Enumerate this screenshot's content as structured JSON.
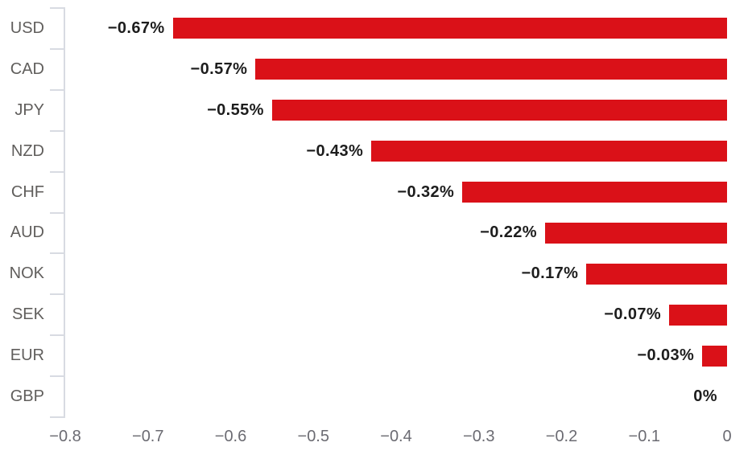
{
  "chart_data": {
    "type": "bar",
    "orientation": "horizontal",
    "title": "",
    "xlabel": "",
    "ylabel": "",
    "legend_position": "none",
    "grid": "off",
    "categories": [
      "USD",
      "CAD",
      "JPY",
      "NZD",
      "CHF",
      "AUD",
      "NOK",
      "SEK",
      "EUR",
      "GBP"
    ],
    "values": [
      -0.67,
      -0.57,
      -0.55,
      -0.43,
      -0.32,
      -0.22,
      -0.17,
      -0.07,
      -0.03,
      0
    ],
    "data_labels": [
      "−0.67%",
      "−0.57%",
      "−0.55%",
      "−0.43%",
      "−0.32%",
      "−0.22%",
      "−0.17%",
      "−0.07%",
      "−0.03%",
      "0%"
    ],
    "x_tick_labels": [
      "−0.8",
      "−0.7",
      "−0.6",
      "−0.5",
      "−0.4",
      "−0.3",
      "−0.2",
      "−0.1",
      "0"
    ],
    "x_tick_values": [
      -0.8,
      -0.7,
      -0.6,
      -0.5,
      -0.4,
      -0.3,
      -0.2,
      -0.1,
      0
    ],
    "xlim": [
      -0.8,
      0
    ],
    "colors": {
      "bar": "#da1118",
      "axis_line": "#d8dbe2",
      "category_label": "#605e5c",
      "x_tick_label": "#6b6b72",
      "data_label": "#1d1d1d",
      "background": "#ffffff"
    }
  }
}
